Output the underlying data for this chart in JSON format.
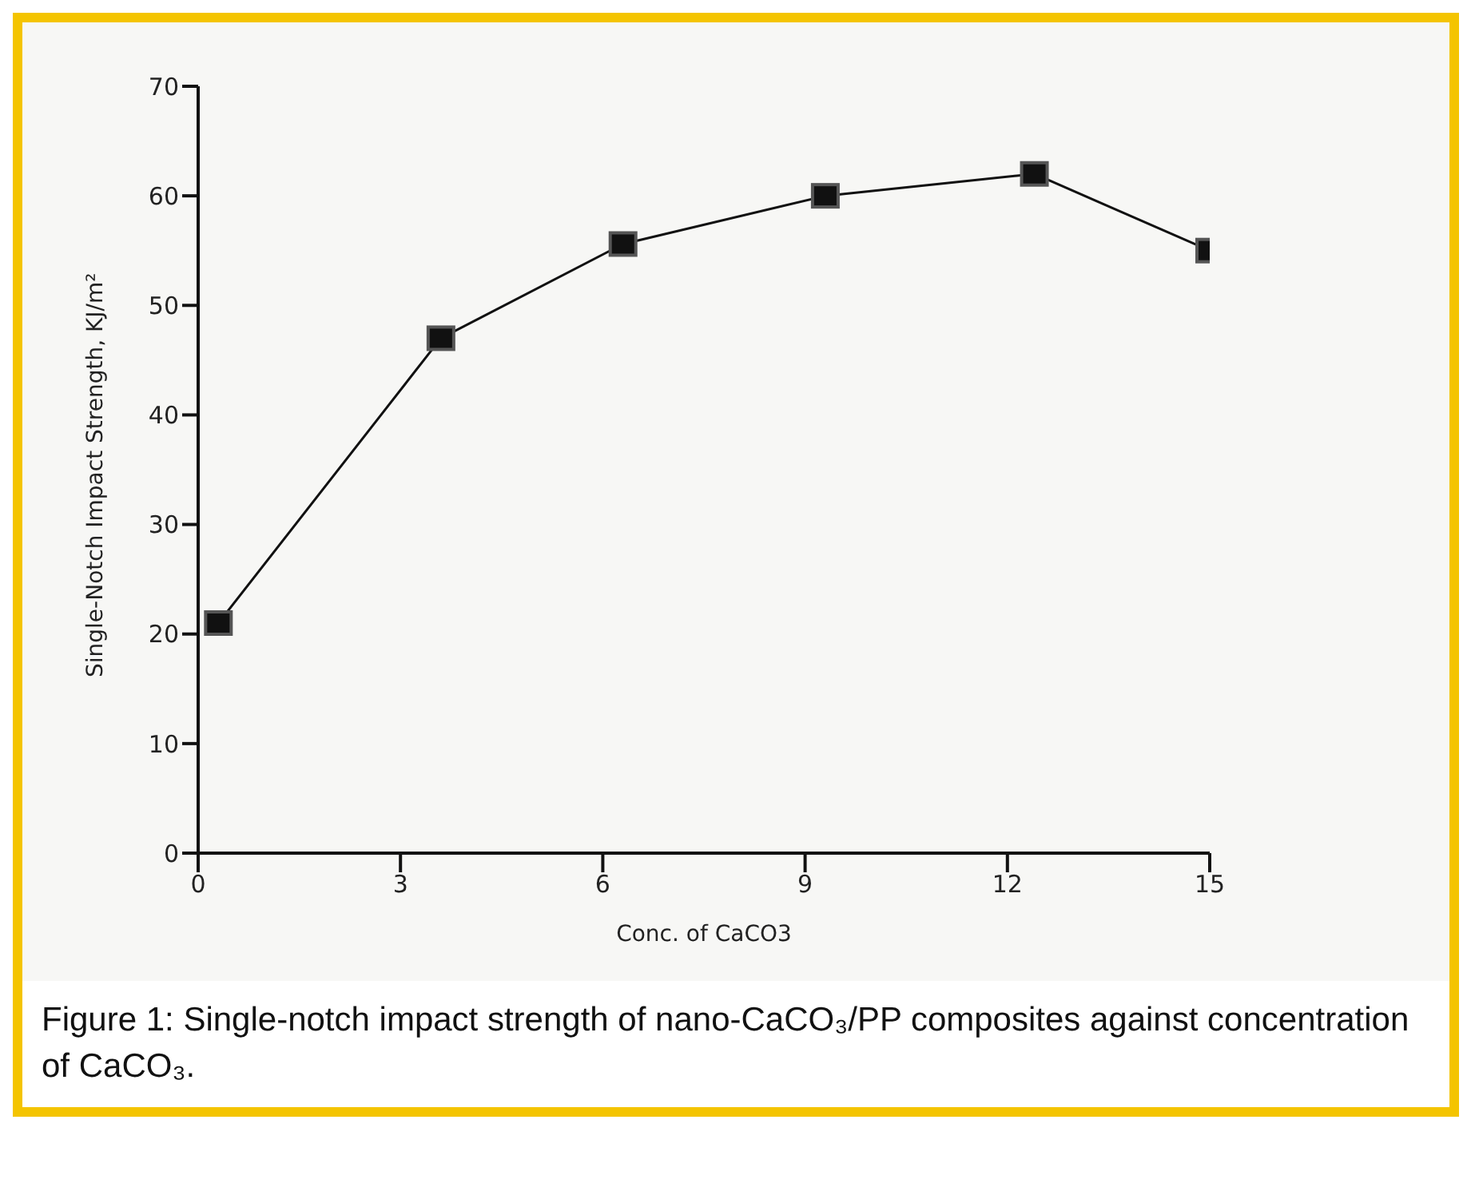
{
  "chart_data": {
    "type": "line",
    "title": "Figure 1: Single-notch impact strength of nano-CaCO₃/PP composites against concentration of CaCO₃.",
    "xlabel": "Conc. of CaCO3",
    "ylabel": "Single-Notch Impact Strength, KJ/m²",
    "x": [
      0.3,
      3.6,
      6.3,
      9.3,
      12.4,
      15
    ],
    "series": [
      {
        "color": "#111111",
        "values": [
          21,
          47,
          55.6,
          60,
          62,
          55
        ]
      }
    ],
    "xlim": [
      0,
      15
    ],
    "xticks": [
      0,
      3,
      6,
      9,
      12,
      15
    ],
    "ylim": [
      0,
      70
    ],
    "yticks": [
      0,
      10,
      20,
      30,
      40,
      50,
      60,
      70
    ],
    "grid": false,
    "legend": false,
    "marker": "square",
    "line_style": "solid"
  }
}
